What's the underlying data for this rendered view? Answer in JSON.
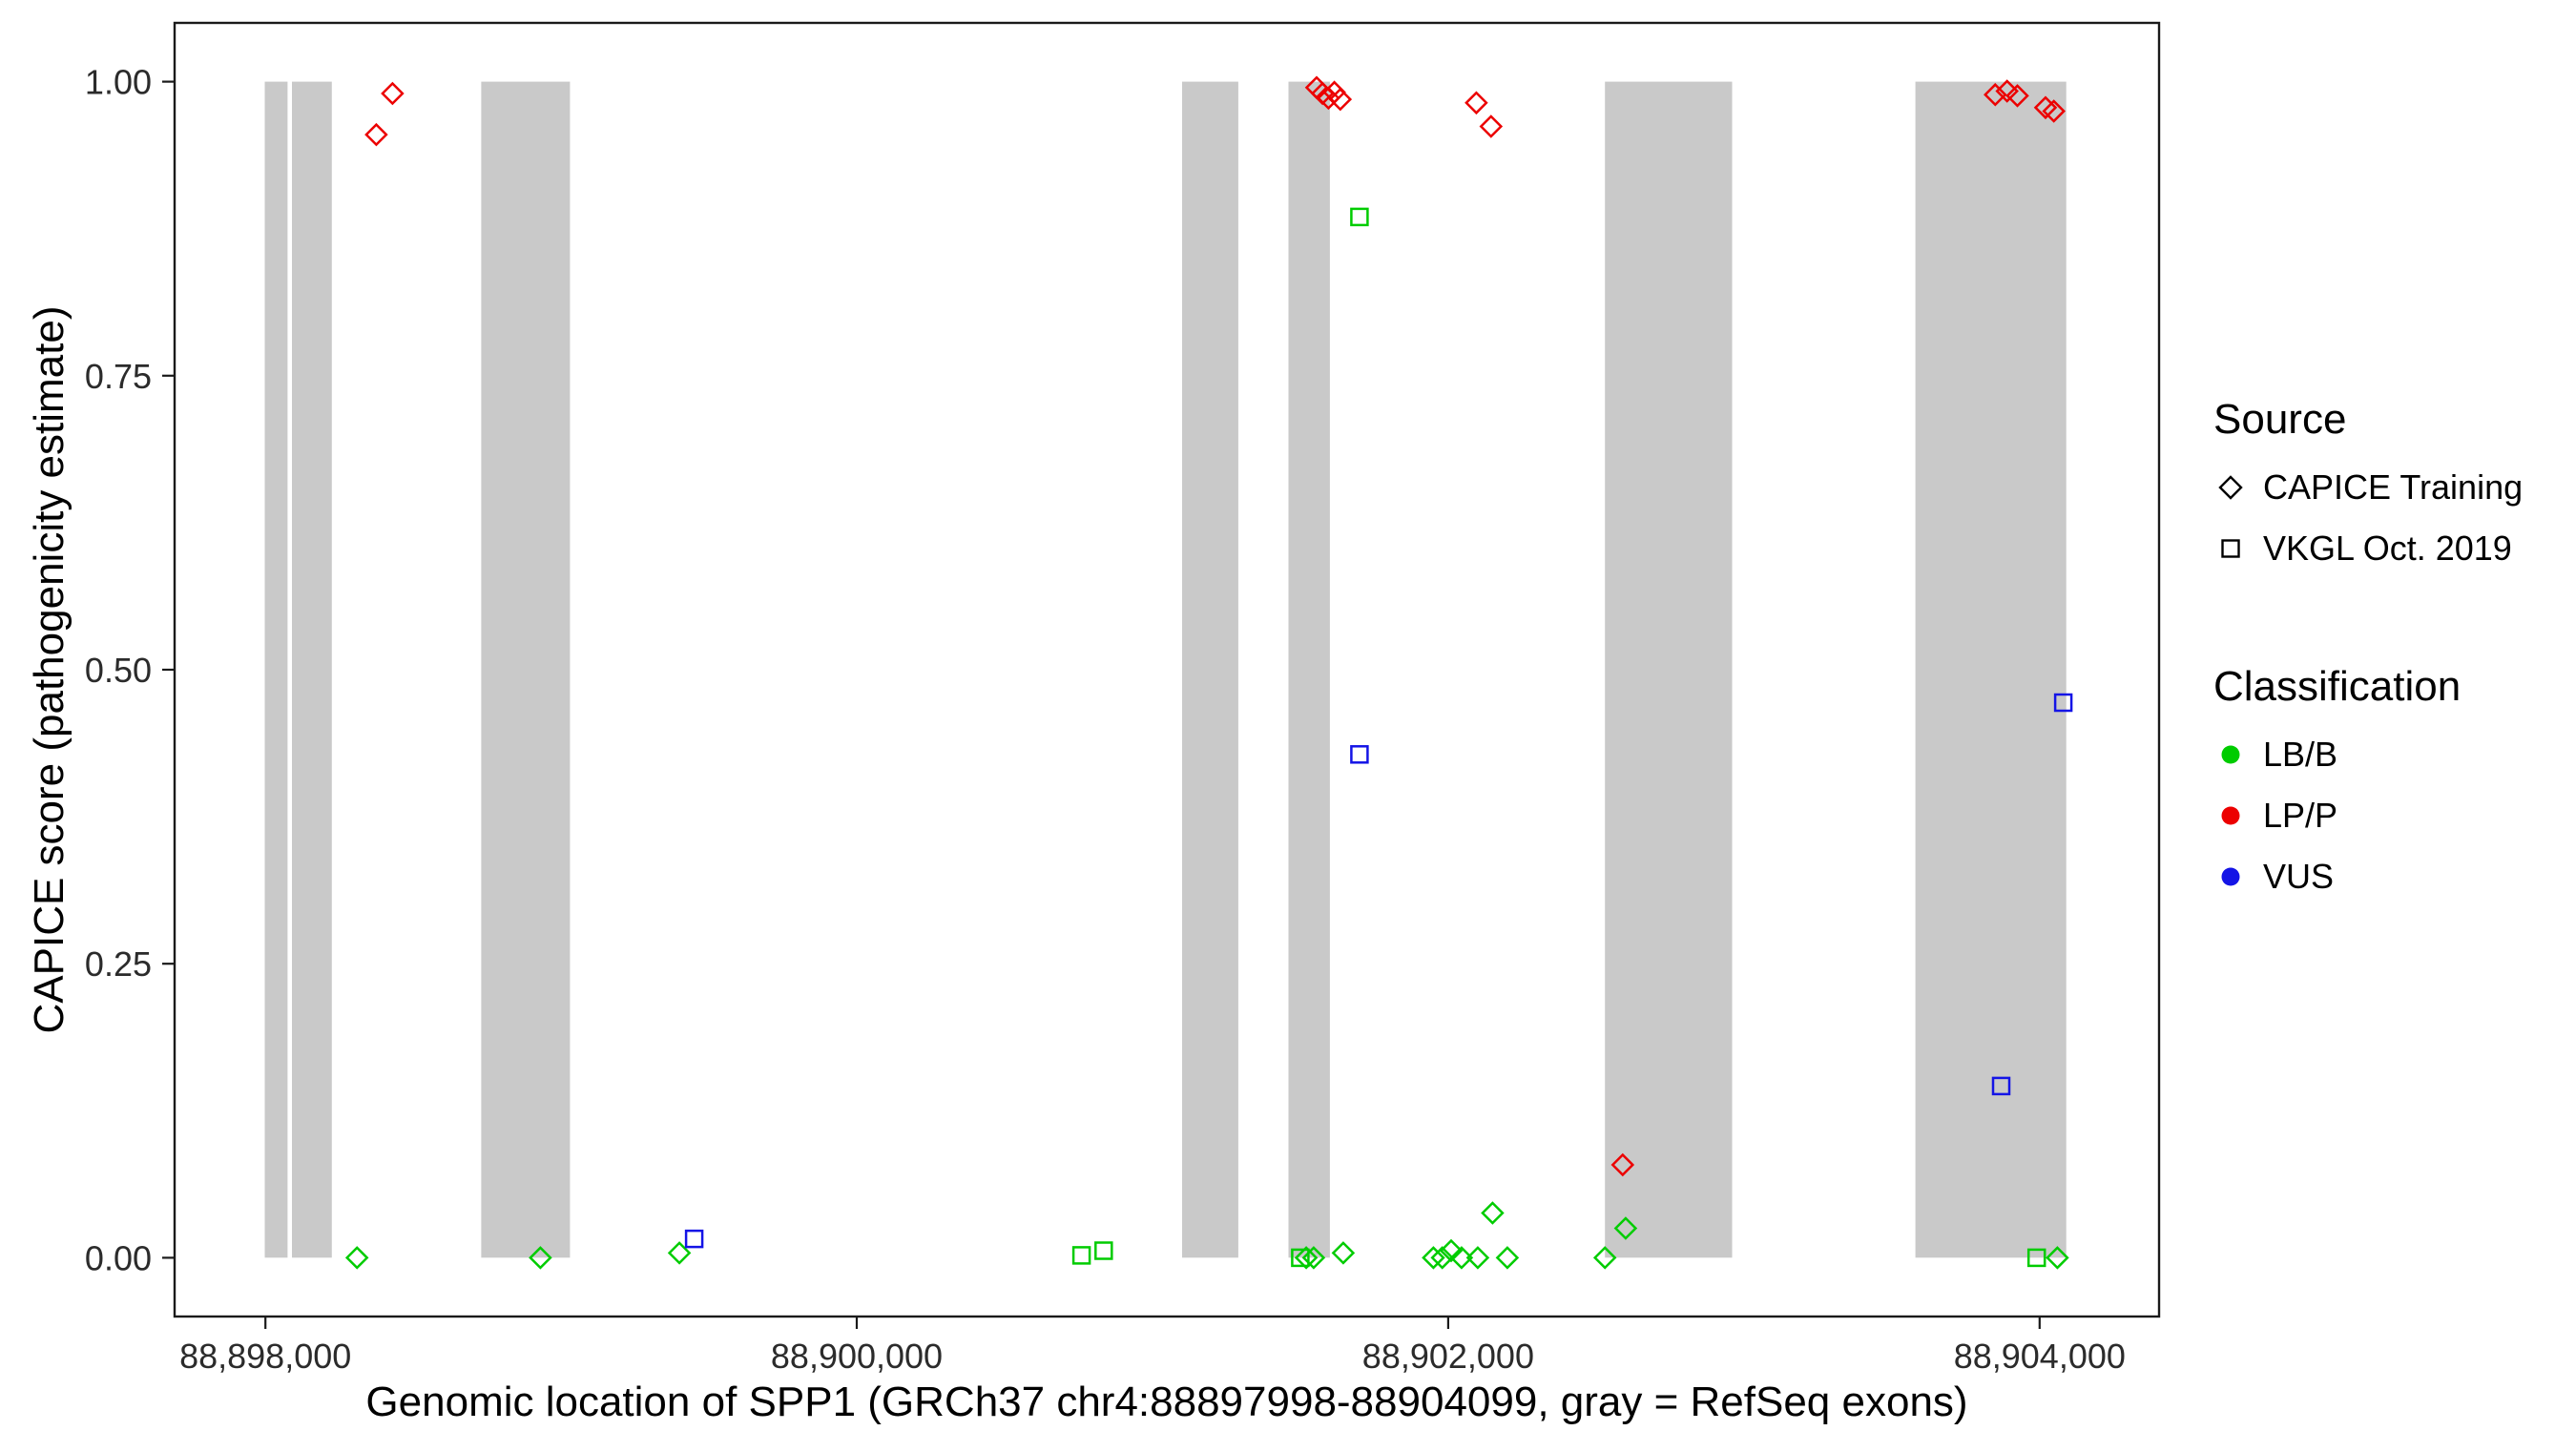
{
  "figure": {
    "background": "#FFFFFF"
  },
  "colors": {
    "exon": "#C9C9C9",
    "axis": "#1A1A1A",
    "lbb": "#00CC00",
    "lpp": "#EC0000",
    "vus": "#1414E6"
  },
  "chart_data": {
    "type": "scatter",
    "title": "",
    "xlabel": "Genomic location of SPP1 (GRCh37 chr4:88897998-88904099, gray = RefSeq exons)",
    "ylabel": "CAPICE score (pathogenicity estimate)",
    "xlim": [
      88897693,
      88904404
    ],
    "ylim": [
      -0.05,
      1.05
    ],
    "grid": false,
    "x_ticks": [
      {
        "value": 88898000,
        "label": "88,898,000"
      },
      {
        "value": 88900000,
        "label": "88,900,000"
      },
      {
        "value": 88902000,
        "label": "88,902,000"
      },
      {
        "value": 88904000,
        "label": "88,904,000"
      }
    ],
    "y_ticks": [
      {
        "value": 0.0,
        "label": "0.00"
      },
      {
        "value": 0.25,
        "label": "0.25"
      },
      {
        "value": 0.5,
        "label": "0.50"
      },
      {
        "value": 0.75,
        "label": "0.75"
      },
      {
        "value": 1.0,
        "label": "1.00"
      }
    ],
    "exons_note": "gray rectangles = RefSeq exons, drawn from score 0 to 1",
    "exons": [
      {
        "start": 88897998,
        "end": 88898075
      },
      {
        "start": 88898090,
        "end": 88898225
      },
      {
        "start": 88898730,
        "end": 88899030
      },
      {
        "start": 88901100,
        "end": 88901290
      },
      {
        "start": 88901460,
        "end": 88901600
      },
      {
        "start": 88902530,
        "end": 88902960
      },
      {
        "start": 88903580,
        "end": 88904090
      }
    ],
    "series": [
      {
        "name": "LP/P (CAPICE Training)",
        "source": "CAPICE Training",
        "classification": "LP/P",
        "shape": "diamond",
        "color": "#EC0000",
        "points": [
          [
            88898375,
            0.955
          ],
          [
            88898430,
            0.99
          ],
          [
            88901555,
            0.995
          ],
          [
            88901575,
            0.99
          ],
          [
            88901595,
            0.986
          ],
          [
            88901615,
            0.991
          ],
          [
            88901635,
            0.985
          ],
          [
            88902095,
            0.982
          ],
          [
            88902145,
            0.962
          ],
          [
            88902590,
            0.079
          ],
          [
            88903850,
            0.989
          ],
          [
            88903890,
            0.992
          ],
          [
            88903925,
            0.988
          ],
          [
            88904020,
            0.978
          ],
          [
            88904048,
            0.975
          ]
        ]
      },
      {
        "name": "LB/B (CAPICE Training)",
        "source": "CAPICE Training",
        "classification": "LB/B",
        "shape": "diamond",
        "color": "#00CC00",
        "points": [
          [
            88898310,
            0.0
          ],
          [
            88898930,
            0.0
          ],
          [
            88899400,
            0.004
          ],
          [
            88901520,
            0.0
          ],
          [
            88901545,
            0.0
          ],
          [
            88901645,
            0.004
          ],
          [
            88901950,
            0.0
          ],
          [
            88901980,
            0.0
          ],
          [
            88902010,
            0.006
          ],
          [
            88902045,
            0.0
          ],
          [
            88902100,
            0.0
          ],
          [
            88902150,
            0.038
          ],
          [
            88902200,
            0.0
          ],
          [
            88902530,
            0.0
          ],
          [
            88902600,
            0.025
          ],
          [
            88904060,
            0.0
          ]
        ]
      },
      {
        "name": "LB/B (VKGL Oct. 2019)",
        "source": "VKGL Oct. 2019",
        "classification": "LB/B",
        "shape": "square",
        "color": "#00CC00",
        "points": [
          [
            88900760,
            0.002
          ],
          [
            88900835,
            0.006
          ],
          [
            88901500,
            0.0
          ],
          [
            88901700,
            0.885
          ],
          [
            88903990,
            0.0
          ]
        ]
      },
      {
        "name": "VUS (VKGL Oct. 2019)",
        "source": "VKGL Oct. 2019",
        "classification": "VUS",
        "shape": "square",
        "color": "#1414E6",
        "points": [
          [
            88899450,
            0.016
          ],
          [
            88901700,
            0.428
          ],
          [
            88903870,
            0.146
          ],
          [
            88904080,
            0.472
          ]
        ]
      }
    ]
  },
  "legend": {
    "source": {
      "title": "Source",
      "items": [
        {
          "label": "CAPICE Training",
          "shape": "diamond"
        },
        {
          "label": "VKGL Oct. 2019",
          "shape": "square"
        }
      ]
    },
    "classification": {
      "title": "Classification",
      "items": [
        {
          "label": "LB/B",
          "color": "#00CC00"
        },
        {
          "label": "LP/P",
          "color": "#EC0000"
        },
        {
          "label": "VUS",
          "color": "#1414E6"
        }
      ]
    }
  }
}
